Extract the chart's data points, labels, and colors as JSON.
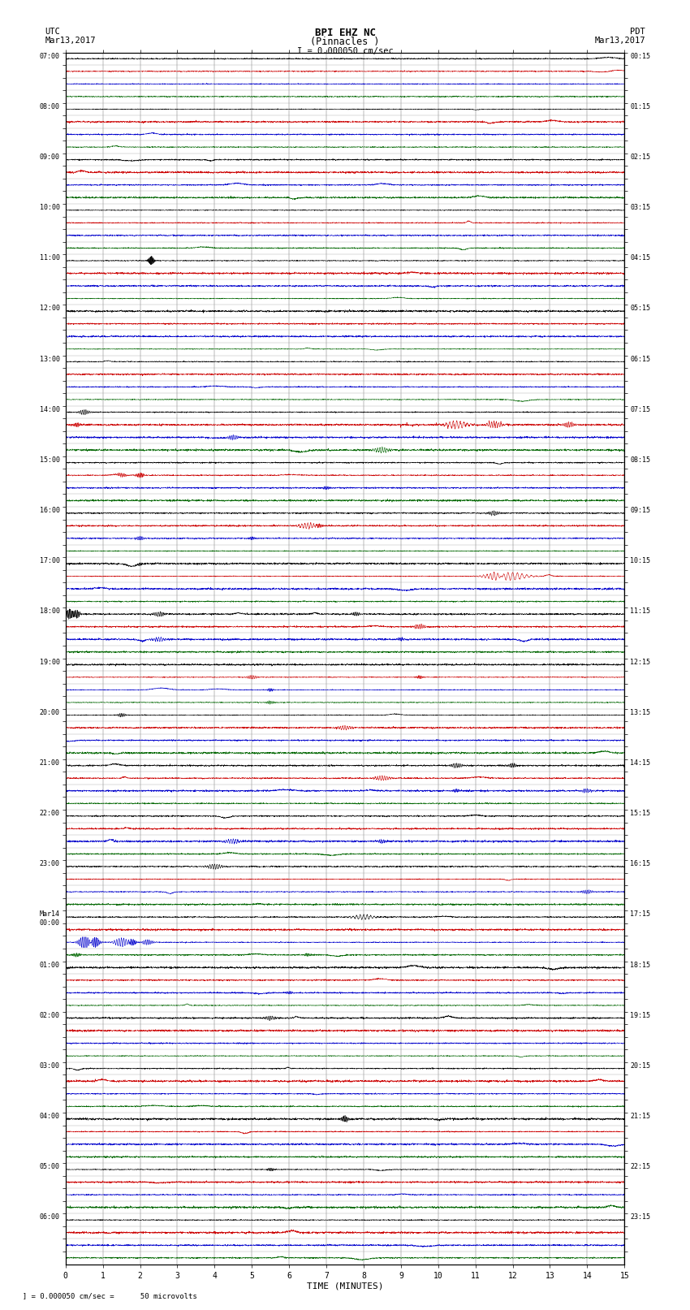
{
  "title_line1": "BPI EHZ NC",
  "title_line2": "(Pinnacles )",
  "title_line3": "I = 0.000050 cm/sec",
  "left_label_top": "UTC",
  "left_label_date": "Mar13,2017",
  "right_label_top": "PDT",
  "right_label_date": "Mar13,2017",
  "bottom_label": "TIME (MINUTES)",
  "bottom_note": "  ] = 0.000050 cm/sec =      50 microvolts",
  "xlabel_ticks": [
    0,
    1,
    2,
    3,
    4,
    5,
    6,
    7,
    8,
    9,
    10,
    11,
    12,
    13,
    14,
    15
  ],
  "n_rows": 96,
  "utc_labels": [
    "07:00",
    "",
    "",
    "",
    "08:00",
    "",
    "",
    "",
    "09:00",
    "",
    "",
    "",
    "10:00",
    "",
    "",
    "",
    "11:00",
    "",
    "",
    "",
    "12:00",
    "",
    "",
    "",
    "13:00",
    "",
    "",
    "",
    "14:00",
    "",
    "",
    "",
    "15:00",
    "",
    "",
    "",
    "16:00",
    "",
    "",
    "",
    "17:00",
    "",
    "",
    "",
    "18:00",
    "",
    "",
    "",
    "19:00",
    "",
    "",
    "",
    "20:00",
    "",
    "",
    "",
    "21:00",
    "",
    "",
    "",
    "22:00",
    "",
    "",
    "",
    "23:00",
    "",
    "",
    "",
    "Mar14\n00:00",
    "",
    "",
    "",
    "01:00",
    "",
    "",
    "",
    "02:00",
    "",
    "",
    "",
    "03:00",
    "",
    "",
    "",
    "04:00",
    "",
    "",
    "",
    "05:00",
    "",
    "",
    "",
    "06:00",
    "",
    "",
    ""
  ],
  "pdt_labels": [
    "00:15",
    "",
    "",
    "",
    "01:15",
    "",
    "",
    "",
    "02:15",
    "",
    "",
    "",
    "03:15",
    "",
    "",
    "",
    "04:15",
    "",
    "",
    "",
    "05:15",
    "",
    "",
    "",
    "06:15",
    "",
    "",
    "",
    "07:15",
    "",
    "",
    "",
    "08:15",
    "",
    "",
    "",
    "09:15",
    "",
    "",
    "",
    "10:15",
    "",
    "",
    "",
    "11:15",
    "",
    "",
    "",
    "12:15",
    "",
    "",
    "",
    "13:15",
    "",
    "",
    "",
    "14:15",
    "",
    "",
    "",
    "15:15",
    "",
    "",
    "",
    "16:15",
    "",
    "",
    "",
    "17:15",
    "",
    "",
    "",
    "18:15",
    "",
    "",
    "",
    "19:15",
    "",
    "",
    "",
    "20:15",
    "",
    "",
    "",
    "21:15",
    "",
    "",
    "",
    "22:15",
    "",
    "",
    "",
    "23:15",
    "",
    "",
    ""
  ],
  "bg_color": "#ffffff",
  "grid_color": "#888888",
  "trace_color_cycle": [
    "#000000",
    "#cc0000",
    "#0000cc",
    "#006600"
  ],
  "noise_amp_base": 0.025,
  "seed": 42,
  "x_min": 0,
  "x_max": 15
}
